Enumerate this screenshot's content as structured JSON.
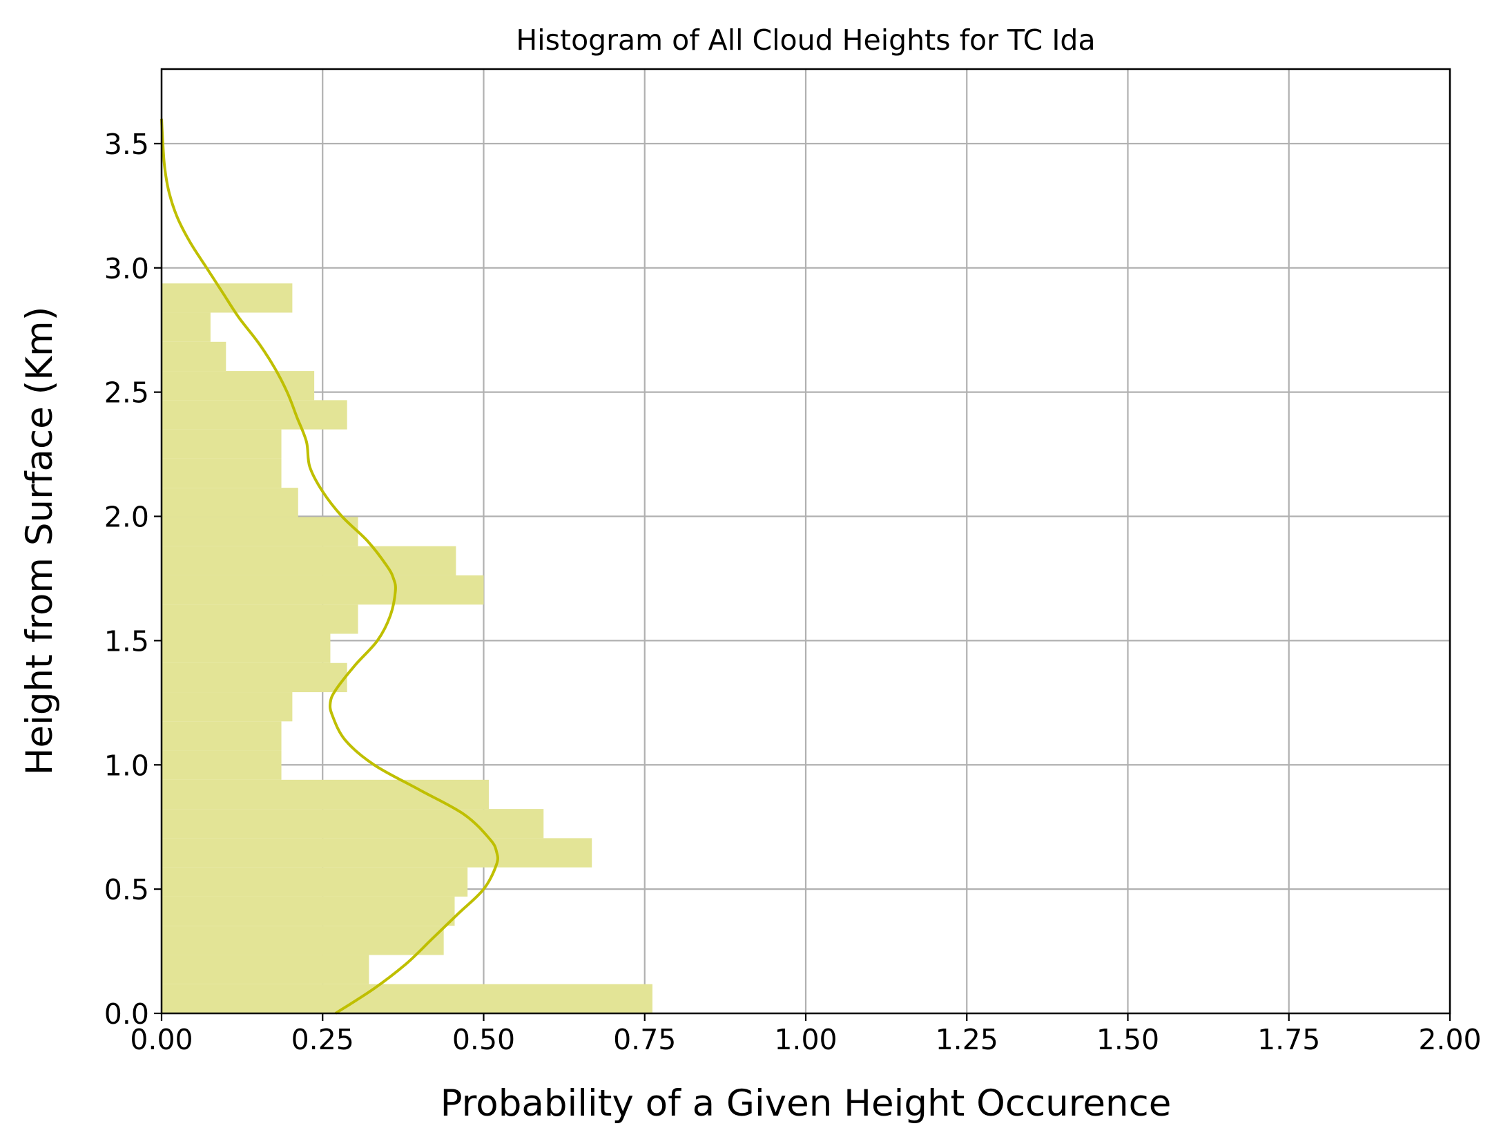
{
  "chart_data": {
    "type": "bar",
    "orientation": "horizontal",
    "title": "Histogram of All Cloud Heights for TC Ida",
    "xlabel": "Probability of a Given Height Occurence",
    "ylabel": "Height from Surface (Km)",
    "xlim": [
      0,
      2.0
    ],
    "ylim": [
      0,
      3.8
    ],
    "x_ticks": [
      "0.00",
      "0.25",
      "0.50",
      "0.75",
      "1.00",
      "1.25",
      "1.50",
      "1.75",
      "2.00"
    ],
    "y_ticks": [
      "0.0",
      "0.5",
      "1.0",
      "1.5",
      "2.0",
      "2.5",
      "3.0",
      "3.5"
    ],
    "grid": true,
    "bin_width": 0.1175,
    "bins": [
      {
        "y0": 0.0,
        "y1": 0.1175,
        "value": 0.762
      },
      {
        "y0": 0.1175,
        "y1": 0.235,
        "value": 0.322
      },
      {
        "y0": 0.235,
        "y1": 0.3525,
        "value": 0.438
      },
      {
        "y0": 0.3525,
        "y1": 0.47,
        "value": 0.455
      },
      {
        "y0": 0.47,
        "y1": 0.5875,
        "value": 0.475
      },
      {
        "y0": 0.5875,
        "y1": 0.705,
        "value": 0.668
      },
      {
        "y0": 0.705,
        "y1": 0.8225,
        "value": 0.593
      },
      {
        "y0": 0.8225,
        "y1": 0.94,
        "value": 0.508
      },
      {
        "y0": 0.94,
        "y1": 1.0575,
        "value": 0.186
      },
      {
        "y0": 1.0575,
        "y1": 1.175,
        "value": 0.186
      },
      {
        "y0": 1.175,
        "y1": 1.2925,
        "value": 0.203
      },
      {
        "y0": 1.2925,
        "y1": 1.41,
        "value": 0.288
      },
      {
        "y0": 1.41,
        "y1": 1.5275,
        "value": 0.262
      },
      {
        "y0": 1.5275,
        "y1": 1.645,
        "value": 0.305
      },
      {
        "y0": 1.645,
        "y1": 1.7625,
        "value": 0.5
      },
      {
        "y0": 1.7625,
        "y1": 1.88,
        "value": 0.457
      },
      {
        "y0": 1.88,
        "y1": 1.9975,
        "value": 0.305
      },
      {
        "y0": 1.9975,
        "y1": 2.115,
        "value": 0.212
      },
      {
        "y0": 2.115,
        "y1": 2.2325,
        "value": 0.186
      },
      {
        "y0": 2.2325,
        "y1": 2.35,
        "value": 0.186
      },
      {
        "y0": 2.35,
        "y1": 2.4675,
        "value": 0.288
      },
      {
        "y0": 2.4675,
        "y1": 2.585,
        "value": 0.237
      },
      {
        "y0": 2.585,
        "y1": 2.7025,
        "value": 0.1
      },
      {
        "y0": 2.7025,
        "y1": 2.82,
        "value": 0.076
      },
      {
        "y0": 2.82,
        "y1": 2.9375,
        "value": 0.203
      }
    ],
    "kde": {
      "y": [
        0.0,
        0.1,
        0.2,
        0.3,
        0.4,
        0.5,
        0.6,
        0.65,
        0.7,
        0.8,
        0.9,
        1.0,
        1.1,
        1.2,
        1.25,
        1.3,
        1.4,
        1.5,
        1.6,
        1.7,
        1.75,
        1.8,
        1.9,
        2.0,
        2.1,
        2.2,
        2.3,
        2.4,
        2.5,
        2.6,
        2.7,
        2.8,
        2.9,
        3.0,
        3.1,
        3.2,
        3.3,
        3.4,
        3.5,
        3.6
      ],
      "x": [
        0.27,
        0.33,
        0.38,
        0.42,
        0.46,
        0.5,
        0.52,
        0.52,
        0.51,
        0.47,
        0.4,
        0.33,
        0.285,
        0.265,
        0.262,
        0.27,
        0.3,
        0.335,
        0.355,
        0.363,
        0.36,
        0.35,
        0.32,
        0.28,
        0.25,
        0.23,
        0.225,
        0.21,
        0.195,
        0.175,
        0.15,
        0.12,
        0.095,
        0.07,
        0.045,
        0.025,
        0.012,
        0.005,
        0.002,
        0.0
      ]
    },
    "colors": {
      "bar_fill": "#e3e496",
      "kde_line": "#bfbf00",
      "grid": "#b0b0b0",
      "axes": "#000000"
    }
  }
}
